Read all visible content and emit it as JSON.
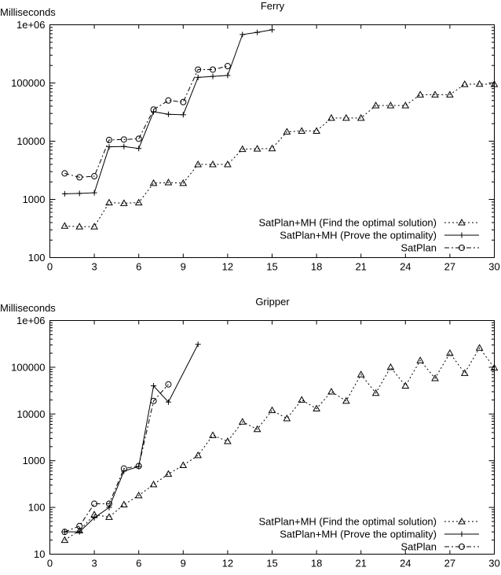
{
  "chart_data": [
    {
      "type": "line",
      "title": "Ferry",
      "ylabel": "Milliseconds",
      "xlabel": "",
      "xlim": [
        0,
        30
      ],
      "ylim": [
        100,
        1000000
      ],
      "yscale": "log",
      "xticks": [
        0,
        3,
        6,
        9,
        12,
        15,
        18,
        21,
        24,
        27,
        30
      ],
      "yticks": [
        100,
        1000,
        10000,
        100000,
        1000000
      ],
      "ytick_labels": [
        "100",
        "1000",
        "10000",
        "100000",
        "1e+06"
      ],
      "legend_position": "bottom-right",
      "series": [
        {
          "name": "SatPlan+MH (Find the optimal solution)",
          "style": "dotted",
          "marker": "triangle",
          "x": [
            1,
            2,
            3,
            4,
            5,
            6,
            7,
            8,
            9,
            10,
            11,
            12,
            13,
            14,
            15,
            16,
            17,
            18,
            19,
            20,
            21,
            22,
            23,
            24,
            25,
            26,
            27,
            28,
            29,
            30
          ],
          "y": [
            350,
            340,
            340,
            880,
            860,
            880,
            1900,
            1950,
            1900,
            4000,
            4000,
            4000,
            7300,
            7400,
            7500,
            14500,
            15000,
            15000,
            25000,
            25000,
            25000,
            41000,
            41000,
            41000,
            63000,
            63000,
            63000,
            95000,
            96000,
            95000
          ]
        },
        {
          "name": "SatPlan+MH (Prove the optimality)",
          "style": "solid",
          "marker": "plus",
          "x": [
            1,
            2,
            3,
            4,
            5,
            6,
            7,
            8,
            9,
            10,
            11,
            12,
            13,
            14,
            15
          ],
          "y": [
            1250,
            1270,
            1300,
            8000,
            8100,
            7500,
            32000,
            29000,
            28500,
            125000,
            130000,
            135000,
            680000,
            740000,
            820000
          ]
        },
        {
          "name": "SatPlan",
          "style": "dashdot",
          "marker": "circle",
          "x": [
            1,
            2,
            3,
            4,
            5,
            6,
            7,
            8,
            9,
            10,
            11,
            12
          ],
          "y": [
            2800,
            2400,
            2500,
            10500,
            10700,
            11000,
            35000,
            50000,
            47000,
            170000,
            170000,
            195000
          ]
        }
      ]
    },
    {
      "type": "line",
      "title": "Gripper",
      "ylabel": "Milliseconds",
      "xlabel": "",
      "xlim": [
        0,
        30
      ],
      "ylim": [
        10,
        1000000
      ],
      "yscale": "log",
      "xticks": [
        0,
        3,
        6,
        9,
        12,
        15,
        18,
        21,
        24,
        27,
        30
      ],
      "yticks": [
        10,
        100,
        1000,
        10000,
        100000,
        1000000
      ],
      "ytick_labels": [
        "10",
        "100",
        "1000",
        "10000",
        "100000",
        "1e+06"
      ],
      "legend_position": "bottom-right",
      "series": [
        {
          "name": "SatPlan+MH (Find the optimal solution)",
          "style": "dotted",
          "marker": "triangle",
          "x": [
            1,
            2,
            3,
            4,
            5,
            6,
            7,
            8,
            9,
            10,
            11,
            12,
            13,
            14,
            15,
            16,
            17,
            18,
            19,
            20,
            21,
            22,
            23,
            24,
            25,
            26,
            27,
            28,
            29,
            30
          ],
          "y": [
            20,
            32,
            70,
            62,
            115,
            180,
            310,
            520,
            800,
            1300,
            3500,
            2600,
            6800,
            4700,
            12000,
            8000,
            20000,
            13000,
            30000,
            19000,
            70000,
            28000,
            100000,
            40000,
            140000,
            58000,
            200000,
            75000,
            260000,
            97000
          ]
        },
        {
          "name": "SatPlan+MH (Prove the optimality)",
          "style": "solid",
          "marker": "plus",
          "x": [
            1,
            2,
            3,
            4,
            5,
            6,
            7,
            8,
            10
          ],
          "y": [
            30,
            30,
            60,
            100,
            600,
            750,
            40000,
            18000,
            310000
          ]
        },
        {
          "name": "SatPlan",
          "style": "dashdot",
          "marker": "circle",
          "x": [
            1,
            2,
            3,
            4,
            5,
            6,
            7,
            8
          ],
          "y": [
            30,
            40,
            120,
            120,
            680,
            770,
            19000,
            43000
          ]
        }
      ]
    }
  ]
}
